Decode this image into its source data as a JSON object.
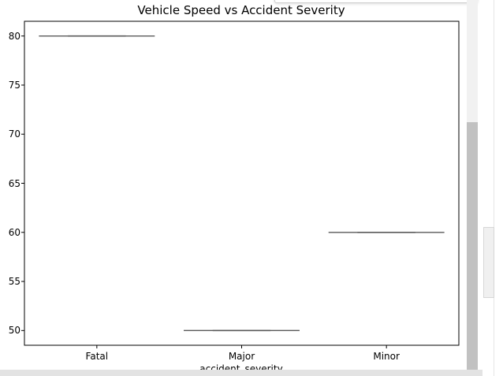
{
  "chart_data": {
    "type": "box",
    "title": "Vehicle Speed vs Accident Severity",
    "xlabel": "accident_severity",
    "ylabel": "",
    "categories": [
      "Fatal",
      "Major",
      "Minor"
    ],
    "values": [
      80,
      50,
      60
    ],
    "ylim": [
      48.5,
      81.5
    ],
    "yticks": [
      "50",
      "55",
      "60",
      "65",
      "70",
      "75",
      "80"
    ],
    "grid": false,
    "legend": "none",
    "box_color": "#5a5a5a"
  },
  "ui": {
    "scrollbar_track_color": "#f1f1f1",
    "scrollbar_thumb_color": "#c1c1c1"
  }
}
